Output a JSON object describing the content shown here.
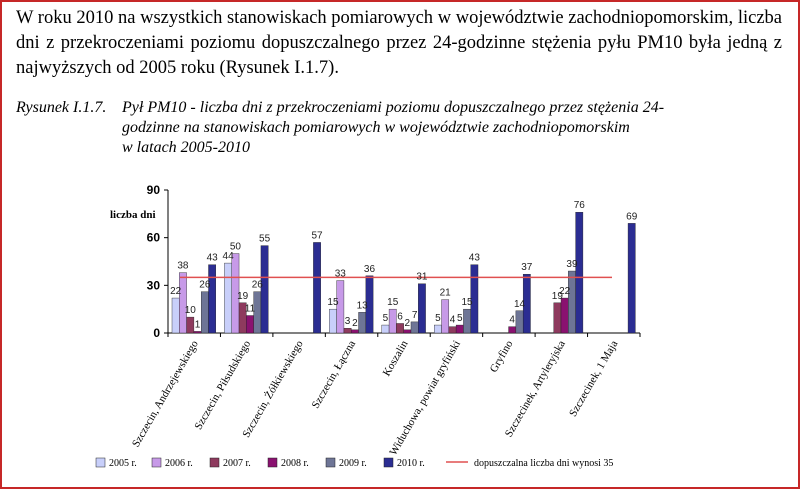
{
  "intro_text": "W roku 2010 na wszystkich stanowiskach pomiarowych w województwie zachodniopomorskim, liczba dni z przekroczeniami poziomu dopuszczalnego przez 24-godzinne stężenia pyłu PM10 była jedną z najwyższych od 2005 roku (Rysunek I.1.7).",
  "caption": {
    "label": "Rysunek I.1.7.",
    "line1": "Pył PM10 - liczba dni z przekroczeniami poziomu dopuszczalnego przez stężenia 24-",
    "line2": "godzinne na stanowiskach pomiarowych w województwie zachodniopomorskim",
    "line3": "w latach 2005-2010"
  },
  "colors": {
    "frame": "#c62828",
    "threshold": "#e05050",
    "series": [
      "#c8cffa",
      "#c79ae8",
      "#8e3a5e",
      "#8a1170",
      "#6e7596",
      "#2b2d92"
    ]
  },
  "chart_data": {
    "type": "bar",
    "ylabel": "liczba dni",
    "ylim": [
      0,
      90
    ],
    "yticks": [
      0,
      30,
      60,
      90
    ],
    "grid": false,
    "legend_position": "bottom",
    "categories": [
      "Szczecin, Andrzejewskiego",
      "Szczecin, Piłsudskiego",
      "Szczecin, Żółkiewskiego",
      "Szczecin, Łączna",
      "Koszalin",
      "Widuchowa, powiat gryfiński",
      "Gryfino",
      "Szczecinek, Artyleryjska",
      "Szczecinek, 1 Maja"
    ],
    "series": [
      {
        "name": "2005 r.",
        "values": [
          22,
          44,
          null,
          15,
          5,
          5,
          null,
          null,
          null
        ]
      },
      {
        "name": "2006 r.",
        "values": [
          38,
          50,
          null,
          33,
          15,
          21,
          null,
          null,
          null
        ]
      },
      {
        "name": "2007 r.",
        "values": [
          10,
          19,
          null,
          3,
          6,
          4,
          null,
          19,
          null
        ]
      },
      {
        "name": "2008 r.",
        "values": [
          1,
          11,
          null,
          2,
          2,
          5,
          4,
          22,
          null
        ]
      },
      {
        "name": "2009 r.",
        "values": [
          26,
          26,
          null,
          13,
          7,
          15,
          14,
          39,
          null
        ]
      },
      {
        "name": "2010 r.",
        "values": [
          43,
          55,
          57,
          36,
          31,
          43,
          37,
          76,
          69
        ]
      }
    ],
    "threshold": {
      "value": 35,
      "label": "dopuszczalna liczba dni wynosi 35"
    }
  }
}
